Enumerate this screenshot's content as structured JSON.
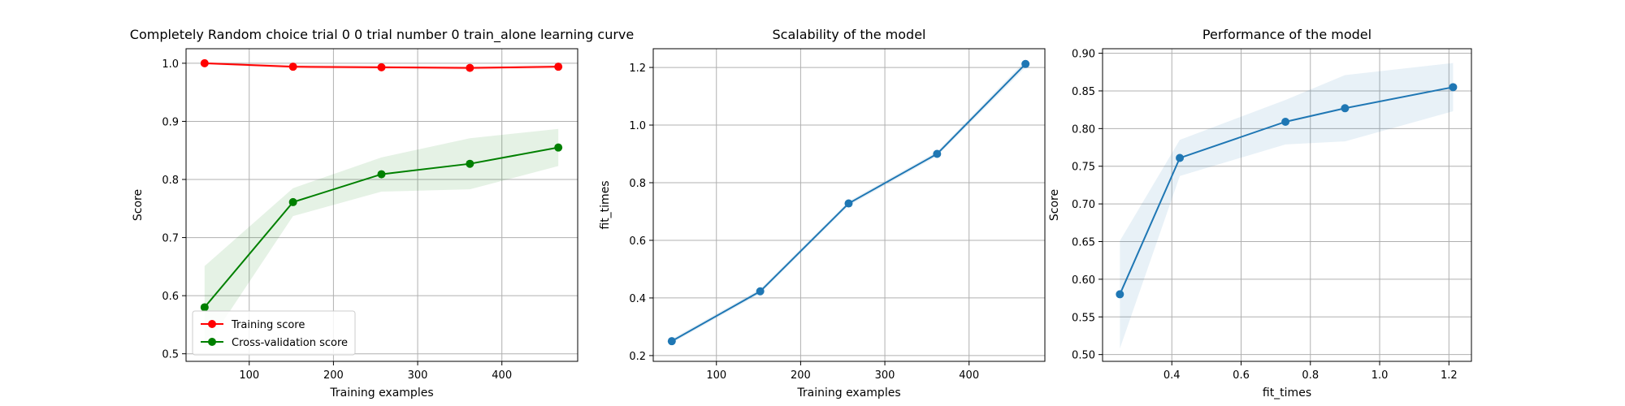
{
  "chart_data": [
    {
      "type": "line",
      "title": "Completely Random choice trial 0 0 trial number 0 train_alone learning curve",
      "xlabel": "Training examples",
      "ylabel": "Score",
      "xlim": [
        25,
        490
      ],
      "ylim": [
        0.487,
        1.025
      ],
      "xticks": [
        100,
        200,
        300,
        400
      ],
      "yticks": [
        0.5,
        0.6,
        0.7,
        0.8,
        0.9,
        1.0
      ],
      "grid": true,
      "legend": "lower-left",
      "x": [
        47,
        152,
        257,
        362,
        467
      ],
      "series": [
        {
          "name": "Training score",
          "color": "#ff0000",
          "values": [
            1.0,
            0.994,
            0.993,
            0.992,
            0.994
          ],
          "band_lower": [
            0.998,
            0.991,
            0.99,
            0.989,
            0.991
          ],
          "band_upper": [
            1.002,
            0.997,
            0.996,
            0.995,
            0.997
          ]
        },
        {
          "name": "Cross-validation score",
          "color": "#008000",
          "values": [
            0.58,
            0.761,
            0.809,
            0.827,
            0.855
          ],
          "band_lower": [
            0.508,
            0.737,
            0.779,
            0.783,
            0.823
          ],
          "band_upper": [
            0.651,
            0.785,
            0.838,
            0.871,
            0.887
          ]
        }
      ]
    },
    {
      "type": "line",
      "title": "Scalability of the model",
      "xlabel": "Training examples",
      "ylabel": "fit_times",
      "xlim": [
        25,
        490
      ],
      "ylim": [
        0.18,
        1.265
      ],
      "xticks": [
        100,
        200,
        300,
        400
      ],
      "yticks": [
        0.2,
        0.4,
        0.6,
        0.8,
        1.0,
        1.2
      ],
      "grid": true,
      "x": [
        47,
        152,
        257,
        362,
        467
      ],
      "series": [
        {
          "color": "#1f77b4",
          "values": [
            0.25,
            0.423,
            0.728,
            0.9,
            1.212
          ],
          "band_lower": [
            0.243,
            0.415,
            0.72,
            0.892,
            1.2
          ],
          "band_upper": [
            0.258,
            0.431,
            0.736,
            0.908,
            1.224
          ]
        }
      ]
    },
    {
      "type": "line",
      "title": "Performance of the model",
      "xlabel": "fit_times",
      "ylabel": "Score",
      "xlim": [
        0.2,
        1.265
      ],
      "ylim": [
        0.491,
        0.906
      ],
      "xticks": [
        0.4,
        0.6,
        0.8,
        1.0,
        1.2
      ],
      "yticks": [
        0.5,
        0.55,
        0.6,
        0.65,
        0.7,
        0.75,
        0.8,
        0.85,
        0.9
      ],
      "grid": true,
      "x": [
        0.25,
        0.423,
        0.728,
        0.9,
        1.212
      ],
      "series": [
        {
          "color": "#1f77b4",
          "values": [
            0.58,
            0.761,
            0.809,
            0.827,
            0.855
          ],
          "band_lower": [
            0.508,
            0.737,
            0.779,
            0.783,
            0.823
          ],
          "band_upper": [
            0.651,
            0.785,
            0.838,
            0.871,
            0.887
          ]
        }
      ]
    }
  ]
}
